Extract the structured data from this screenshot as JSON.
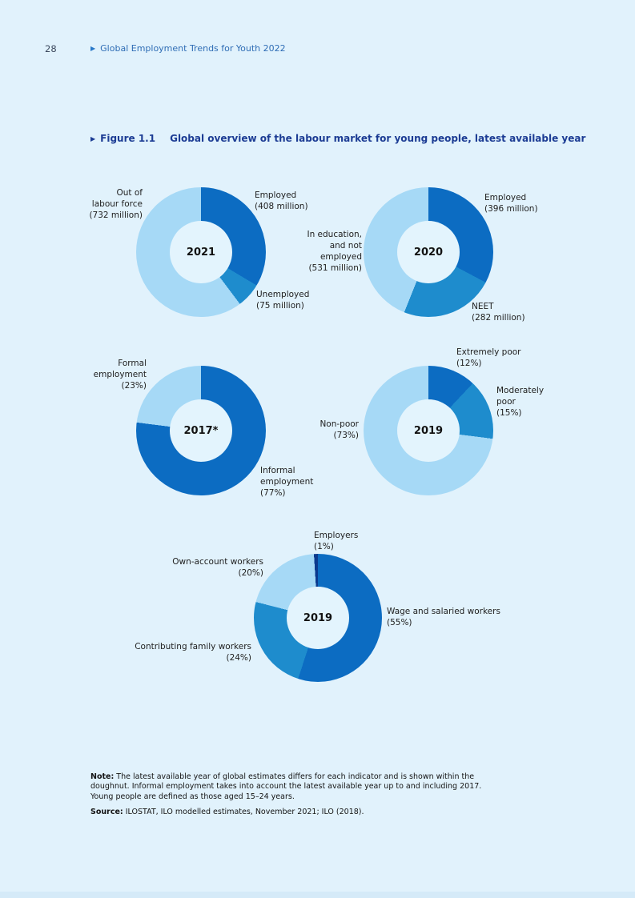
{
  "page": {
    "number": "28",
    "header_title": "Global Employment Trends for Youth 2022"
  },
  "figure": {
    "label": "Figure 1.1",
    "title": "Global overview of the labour market for young people, latest available year"
  },
  "palette": {
    "dark_blue": "#0c6cc2",
    "medium_blue": "#1e8ccd",
    "light_blue": "#a6d9f6",
    "navy": "#0c3a8e",
    "background": "#e1f2fc",
    "hole": "#e3f4fd"
  },
  "chart_data": [
    {
      "type": "pie",
      "doughnut": true,
      "start_angle": "top",
      "direction": "clockwise",
      "center_label": "2021",
      "slices": [
        {
          "label": "Employed",
          "value": 408,
          "unit": "million",
          "color": "dark_blue",
          "label_text": "Employed\n(408 million)"
        },
        {
          "label": "Unemployed",
          "value": 75,
          "unit": "million",
          "color": "medium_blue",
          "label_text": "Unemployed\n(75 million)"
        },
        {
          "label": "Out of labour force",
          "value": 732,
          "unit": "million",
          "color": "light_blue",
          "label_text": "Out of\nlabour force\n(732 million)"
        }
      ]
    },
    {
      "type": "pie",
      "doughnut": true,
      "start_angle": "top",
      "direction": "clockwise",
      "center_label": "2020",
      "slices": [
        {
          "label": "Employed",
          "value": 396,
          "unit": "million",
          "color": "dark_blue",
          "label_text": "Employed\n(396 million)"
        },
        {
          "label": "NEET",
          "value": 282,
          "unit": "million",
          "color": "medium_blue",
          "label_text": "NEET\n(282 million)"
        },
        {
          "label": "In education, and not employed",
          "value": 531,
          "unit": "million",
          "color": "light_blue",
          "label_text": "In education,\nand not\nemployed\n(531 million)"
        }
      ]
    },
    {
      "type": "pie",
      "doughnut": true,
      "start_angle": "top",
      "direction": "clockwise",
      "center_label": "2017*",
      "slices": [
        {
          "label": "Informal employment",
          "value": 77,
          "unit": "%",
          "color": "dark_blue",
          "label_text": "Informal\nemployment\n(77%)"
        },
        {
          "label": "Formal employment",
          "value": 23,
          "unit": "%",
          "color": "light_blue",
          "label_text": "Formal\nemployment\n(23%)"
        }
      ]
    },
    {
      "type": "pie",
      "doughnut": true,
      "start_angle": "top",
      "direction": "clockwise",
      "center_label": "2019",
      "slices": [
        {
          "label": "Extremely poor",
          "value": 12,
          "unit": "%",
          "color": "dark_blue",
          "label_text": "Extremely poor\n(12%)"
        },
        {
          "label": "Moderately poor",
          "value": 15,
          "unit": "%",
          "color": "medium_blue",
          "label_text": "Moderately\npoor\n(15%)"
        },
        {
          "label": "Non-poor",
          "value": 73,
          "unit": "%",
          "color": "light_blue",
          "label_text": "Non-poor\n(73%)"
        }
      ]
    },
    {
      "type": "pie",
      "doughnut": true,
      "start_angle": "top",
      "direction": "clockwise",
      "center_label": "2019",
      "slices": [
        {
          "label": "Wage and salaried workers",
          "value": 55,
          "unit": "%",
          "color": "dark_blue",
          "label_text": "Wage and salaried workers\n(55%)"
        },
        {
          "label": "Contributing family workers",
          "value": 24,
          "unit": "%",
          "color": "medium_blue",
          "label_text": "Contributing family workers\n(24%)"
        },
        {
          "label": "Own-account workers",
          "value": 20,
          "unit": "%",
          "color": "light_blue",
          "label_text": "Own-account workers\n(20%)"
        },
        {
          "label": "Employers",
          "value": 1,
          "unit": "%",
          "color": "navy",
          "label_text": "Employers\n(1%)"
        }
      ]
    }
  ],
  "note": {
    "label": "Note:",
    "text": "The latest available year of global estimates differs for each indicator and is shown within the doughnut. Informal employment takes into account the latest available year up to and including 2017. Young people are defined as those aged 15–24 years."
  },
  "source": {
    "label": "Source:",
    "text": "ILOSTAT, ILO modelled estimates, November 2021; ILO (2018)."
  },
  "icons": {
    "bullet": "▶"
  }
}
